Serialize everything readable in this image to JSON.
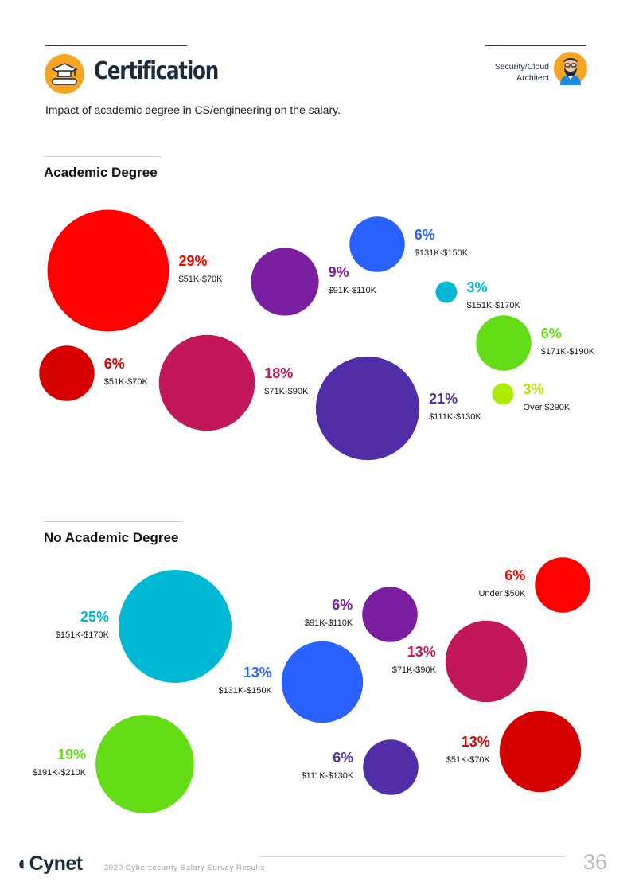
{
  "header": {
    "title": "Certification",
    "subtitle": "Impact of academic degree in CS/engineering on the salary.",
    "role_line1": "Security/Cloud",
    "role_line2": "Architect"
  },
  "chart_data": [
    {
      "type": "bubble",
      "title": "Academic Degree",
      "points": [
        {
          "value": 29,
          "label": "29%",
          "category": "$51K-$70K",
          "color": "#ff0000"
        },
        {
          "value": 9,
          "label": "9%",
          "category": "$91K-$110K",
          "color": "#7b1fa2"
        },
        {
          "value": 6,
          "label": "6%",
          "category": "$131K-$150K",
          "color": "#2962ff"
        },
        {
          "value": 3,
          "label": "3%",
          "category": "$151K-$170K",
          "color": "#00b8d4"
        },
        {
          "value": 6,
          "label": "6%",
          "category": "$171K-$190K",
          "color": "#64dd17"
        },
        {
          "value": 6,
          "label": "6%",
          "category": "$51K-$70K",
          "color": "#d50000"
        },
        {
          "value": 18,
          "label": "18%",
          "category": "$71K-$90K",
          "color": "#c2185b"
        },
        {
          "value": 21,
          "label": "21%",
          "category": "$111K-$130K",
          "color": "#512da8"
        },
        {
          "value": 3,
          "label": "3%",
          "category": "Over $290K",
          "color": "#aeea00"
        }
      ]
    },
    {
      "type": "bubble",
      "title": "No Academic Degree",
      "points": [
        {
          "value": 25,
          "label": "25%",
          "category": "$151K-$170K",
          "color": "#00b8d4"
        },
        {
          "value": 6,
          "label": "6%",
          "category": "$91K-$110K",
          "color": "#7b1fa2"
        },
        {
          "value": 6,
          "label": "6%",
          "category": "Under $50K",
          "color": "#ff0000"
        },
        {
          "value": 13,
          "label": "13%",
          "category": "$131K-$150K",
          "color": "#2962ff"
        },
        {
          "value": 13,
          "label": "13%",
          "category": "$71K-$90K",
          "color": "#c2185b"
        },
        {
          "value": 19,
          "label": "19%",
          "category": "$191K-$210K",
          "color": "#64dd17"
        },
        {
          "value": 6,
          "label": "6%",
          "category": "$111K-$130K",
          "color": "#512da8"
        },
        {
          "value": 13,
          "label": "13%",
          "category": "$51K-$70K",
          "color": "#d50000"
        }
      ]
    }
  ],
  "footer": {
    "brand": "Cynet",
    "text": "2020 Cybersecurity Salary Survey Results",
    "page": "36"
  }
}
